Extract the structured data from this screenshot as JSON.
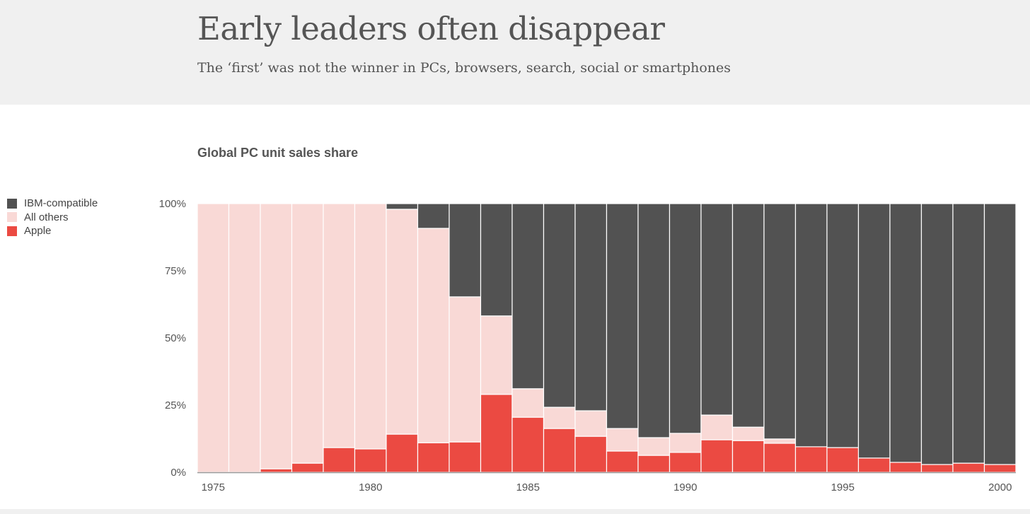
{
  "header": {
    "title": "Early leaders often disappear",
    "subtitle": "The ‘first’ was not the winner in PCs, browsers, search, social or smartphones"
  },
  "chart_data": {
    "type": "bar",
    "stacked": true,
    "title": "Global PC unit sales share",
    "xlabel": "",
    "ylabel": "",
    "ylim": [
      0,
      100
    ],
    "yticks": [
      "0%",
      "25%",
      "50%",
      "75%",
      "100%"
    ],
    "ytick_values": [
      0,
      25,
      50,
      75,
      100
    ],
    "xtick_labels": [
      "1975",
      "1980",
      "1985",
      "1990",
      "1995",
      "2000"
    ],
    "legend_position": "left",
    "categories": [
      1975,
      1976,
      1977,
      1978,
      1979,
      1980,
      1981,
      1982,
      1983,
      1984,
      1985,
      1986,
      1987,
      1988,
      1989,
      1990,
      1991,
      1992,
      1993,
      1994,
      1995,
      1996,
      1997,
      1998,
      1999,
      2000
    ],
    "series": [
      {
        "name": "Apple",
        "color": "#eb4a42",
        "values": [
          0,
          0,
          1.3,
          3.4,
          9.2,
          8.7,
          14.2,
          11,
          11.3,
          29,
          20.5,
          16.3,
          13.4,
          7.9,
          6.3,
          7.4,
          12.1,
          11.8,
          10.8,
          9.5,
          9.2,
          5.3,
          3.7,
          2.9,
          3.4,
          2.9
        ]
      },
      {
        "name": "All others",
        "color": "#f9d9d6",
        "values": [
          100,
          100,
          98.7,
          96.6,
          90.8,
          91.3,
          83.7,
          79.8,
          54,
          29.2,
          10.6,
          7.9,
          9.5,
          8.4,
          6.6,
          7.1,
          9.2,
          5,
          1.6,
          0,
          0,
          0,
          0,
          0,
          0,
          0
        ]
      },
      {
        "name": "IBM-compatible",
        "color": "#525252",
        "values": [
          0,
          0,
          0,
          0,
          0,
          0,
          2.1,
          9.2,
          34.7,
          41.8,
          68.9,
          75.8,
          77.1,
          83.7,
          87.1,
          85.5,
          78.7,
          83.2,
          87.6,
          90.5,
          90.8,
          94.7,
          96.3,
          97.1,
          96.6,
          97.1
        ]
      }
    ]
  },
  "legend": [
    "IBM-compatible",
    "All others",
    "Apple"
  ]
}
